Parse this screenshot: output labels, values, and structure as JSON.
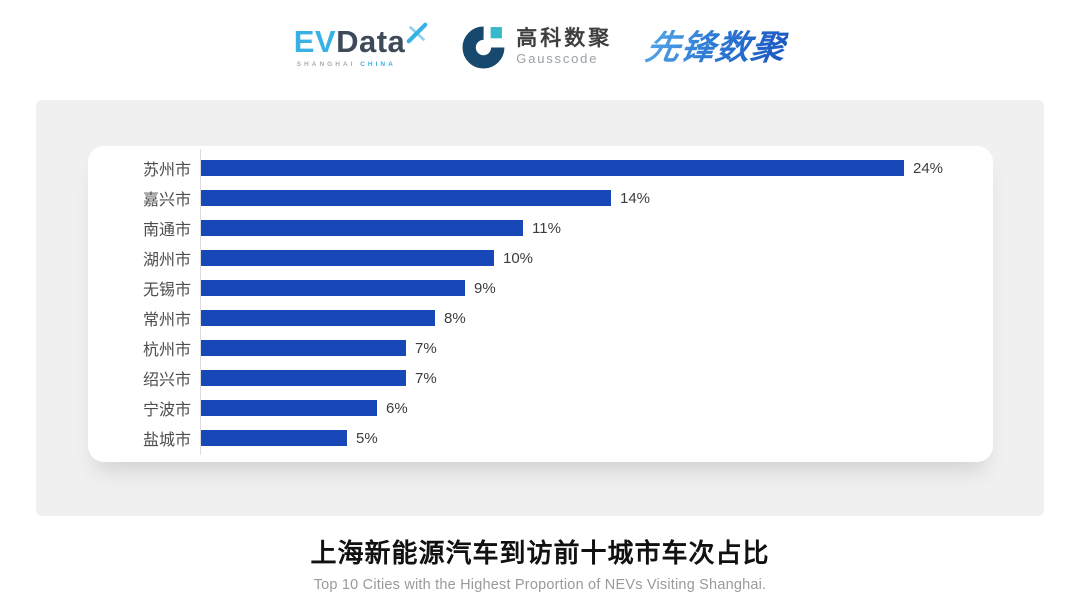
{
  "header": {
    "evdata": {
      "ev": "EV",
      "data": "Data",
      "mark_icon": "x-star-icon",
      "sub_left": "SHANGHAI",
      "sub_right": "CHINA"
    },
    "gausscode": {
      "mark_icon": "g-ring-icon",
      "cn": "高科数聚",
      "en": "Gausscode"
    },
    "pioneer": {
      "text": "先锋数聚"
    }
  },
  "chart_data": {
    "type": "bar",
    "orientation": "horizontal",
    "title": "上海新能源汽车到访前十城市车次占比",
    "subtitle": "Top 10 Cities with the Highest Proportion of  NEVs Visiting Shanghai.",
    "categories": [
      "苏州市",
      "嘉兴市",
      "南通市",
      "湖州市",
      "无锡市",
      "常州市",
      "杭州市",
      "绍兴市",
      "宁波市",
      "盐城市"
    ],
    "values": [
      24,
      14,
      11,
      10,
      9,
      8,
      7,
      7,
      6,
      5
    ],
    "value_labels": [
      "24%",
      "14%",
      "11%",
      "10%",
      "9%",
      "8%",
      "7%",
      "7%",
      "6%",
      "5%"
    ],
    "xlim": [
      0,
      24
    ],
    "grid": false,
    "legend": "none",
    "bar_color": "#1848b8",
    "axis_line_color": "#dcdcdc"
  },
  "colors": {
    "card_bg": "#f0f0f0",
    "panel_bg": "#ffffff",
    "evdata_cyan": "#38b1e4",
    "evdata_dark": "#3e4a5a",
    "gausscode_navy": "#17496e",
    "gausscode_teal": "#35b8c8",
    "pioneer_blue_from": "#54a7e8",
    "pioneer_blue_to": "#1b57c2",
    "category_label": "#4d4d4d",
    "value_label": "#3d3d3d",
    "title": "#111111",
    "subtitle": "#9a9a9a"
  }
}
